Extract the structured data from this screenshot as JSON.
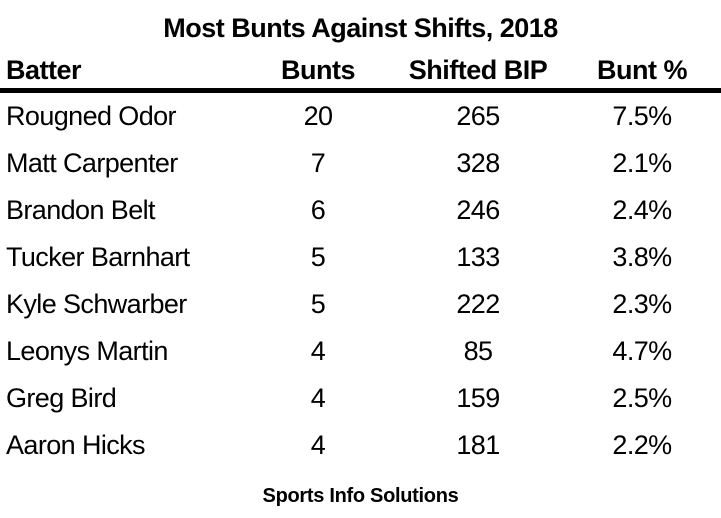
{
  "chart_data": {
    "type": "table",
    "title": "Most Bunts Against Shifts, 2018",
    "columns": [
      "Batter",
      "Bunts",
      "Shifted BIP",
      "Bunt %"
    ],
    "rows": [
      [
        "Rougned Odor",
        "20",
        "265",
        "7.5%"
      ],
      [
        "Matt Carpenter",
        "7",
        "328",
        "2.1%"
      ],
      [
        "Brandon Belt",
        "6",
        "246",
        "2.4%"
      ],
      [
        "Tucker Barnhart",
        "5",
        "133",
        "3.8%"
      ],
      [
        "Kyle Schwarber",
        "5",
        "222",
        "2.3%"
      ],
      [
        "Leonys Martin",
        "4",
        "85",
        "4.7%"
      ],
      [
        "Greg Bird",
        "4",
        "159",
        "2.5%"
      ],
      [
        "Aaron Hicks",
        "4",
        "181",
        "2.2%"
      ]
    ],
    "source": "Sports Info Solutions",
    "layout": {
      "legend": "none",
      "grid": "off",
      "header_rule": "thick-black",
      "value_columns_alignment": "center",
      "batter_column_alignment": "left"
    }
  },
  "colors": {
    "text": "#000000",
    "background": "#ffffff",
    "rule": "#000000"
  }
}
